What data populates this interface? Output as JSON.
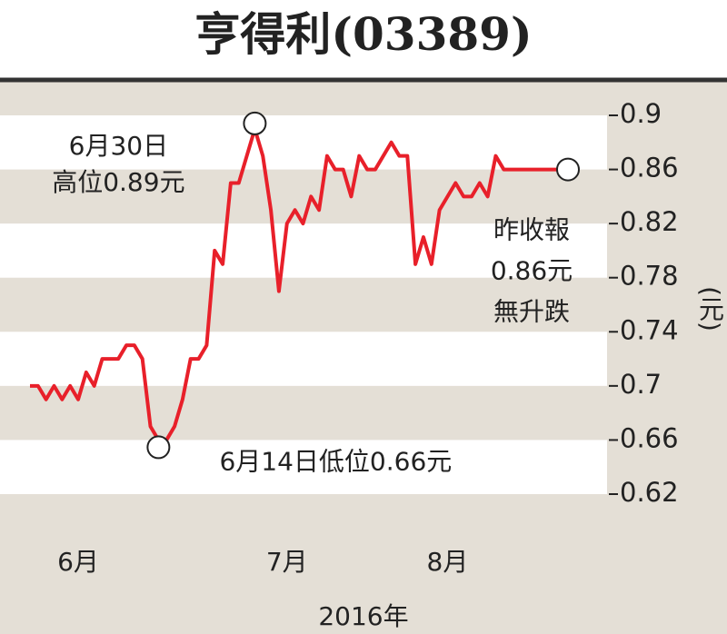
{
  "chart_data": {
    "type": "line",
    "title": "亨得利(03389)",
    "x_axis_label": "2016年",
    "y_axis_label": "(元)",
    "categories": [
      null,
      null,
      null,
      null,
      null,
      null,
      "6月",
      null,
      null,
      null,
      null,
      null,
      null,
      null,
      null,
      null,
      null,
      null,
      null,
      null,
      null,
      null,
      null,
      null,
      null,
      null,
      null,
      null,
      null,
      null,
      null,
      null,
      "7月",
      null,
      null,
      null,
      null,
      null,
      null,
      null,
      null,
      null,
      null,
      null,
      null,
      null,
      null,
      null,
      null,
      null,
      null,
      null,
      "8月",
      null,
      null,
      null,
      null,
      null,
      null,
      null,
      null,
      null,
      null,
      null,
      null,
      null,
      null,
      null
    ],
    "series": [
      {
        "name": "亨得利",
        "color": "#e8202a",
        "values": [
          0.7,
          0.7,
          0.69,
          0.7,
          0.69,
          0.7,
          0.69,
          0.71,
          0.7,
          0.72,
          0.72,
          0.72,
          0.73,
          0.73,
          0.72,
          0.67,
          0.66,
          0.66,
          0.67,
          0.69,
          0.72,
          0.72,
          0.73,
          0.8,
          0.79,
          0.85,
          0.85,
          0.87,
          0.89,
          0.87,
          0.83,
          0.77,
          0.82,
          0.83,
          0.82,
          0.84,
          0.83,
          0.87,
          0.86,
          0.86,
          0.84,
          0.87,
          0.86,
          0.86,
          0.87,
          0.88,
          0.87,
          0.87,
          0.79,
          0.81,
          0.79,
          0.83,
          0.84,
          0.85,
          0.84,
          0.84,
          0.85,
          0.84,
          0.87,
          0.86,
          0.86,
          0.86,
          0.86,
          0.86,
          0.86,
          0.86,
          0.86,
          0.86
        ]
      }
    ],
    "ylim": [
      0.6,
      0.92
    ],
    "yticks": [
      0.62,
      0.66,
      0.7,
      0.74,
      0.78,
      0.82,
      0.86,
      0.9
    ],
    "annotations": [
      {
        "index": 28,
        "lines": [
          "6月30日",
          "高位0.89元"
        ]
      },
      {
        "index": 16,
        "lines": [
          "6月14日低位0.66元"
        ]
      },
      {
        "index": 67,
        "lines": [
          "昨收報",
          "0.86元",
          "無升跌"
        ]
      }
    ]
  }
}
